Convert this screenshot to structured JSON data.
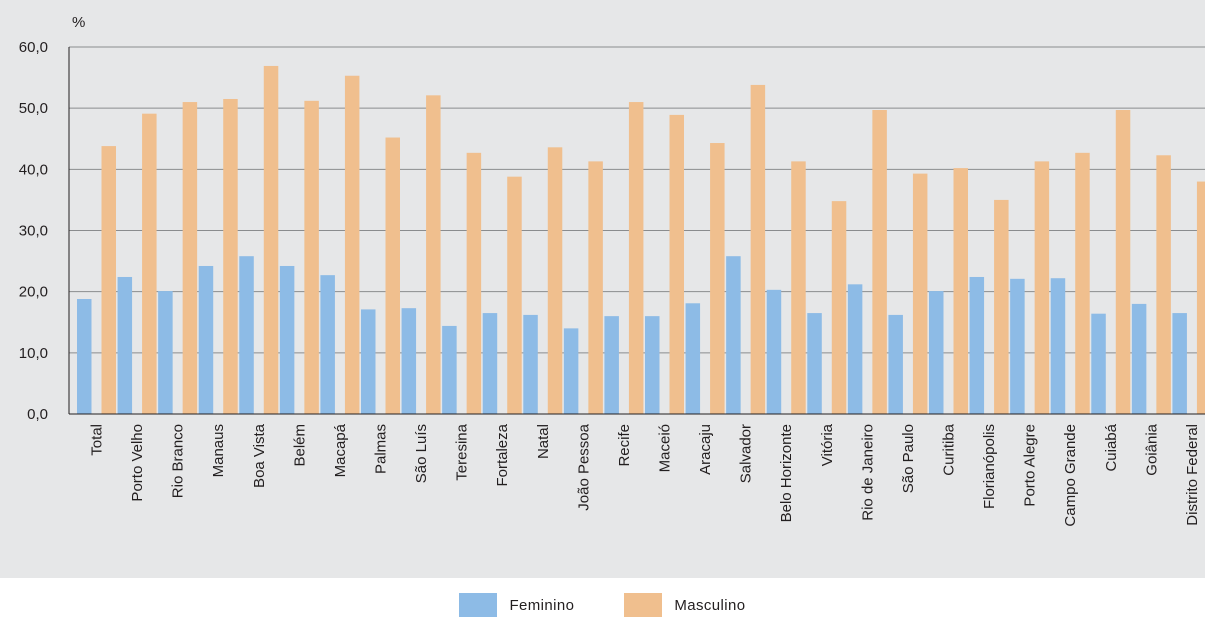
{
  "chart_data": {
    "type": "bar",
    "ylabel": "%",
    "ylim": [
      0,
      60
    ],
    "yticks": [
      "0,0",
      "10,0",
      "20,0",
      "30,0",
      "40,0",
      "50,0",
      "60,0"
    ],
    "grid": true,
    "legend_position": "bottom",
    "categories": [
      "Total",
      "Porto Velho",
      "Rio Branco",
      "Manaus",
      "Boa Vista",
      "Belém",
      "Macapá",
      "Palmas",
      "São Luís",
      "Teresina",
      "Fortaleza",
      "Natal",
      "João Pessoa",
      "Recife",
      "Maceió",
      "Aracaju",
      "Salvador",
      "Belo Horizonte",
      "Vitória",
      "Rio de Janeiro",
      "São Paulo",
      "Curitiba",
      "Florianópolis",
      "Porto Alegre",
      "Campo Grande",
      "Cuiabá",
      "Goiânia",
      "Distrito Federal"
    ],
    "series": [
      {
        "name": "Feminino",
        "color": "#8dbbe6",
        "values": [
          18.8,
          22.4,
          20.1,
          24.2,
          25.8,
          24.2,
          22.7,
          17.1,
          17.3,
          14.4,
          16.5,
          16.2,
          14.0,
          16.0,
          16.0,
          18.1,
          25.8,
          20.3,
          16.5,
          21.2,
          16.2,
          20.1,
          22.4,
          22.1,
          22.2,
          16.4,
          18.0,
          16.5
        ]
      },
      {
        "name": "Masculino",
        "color": "#f0bf8e",
        "values": [
          43.8,
          49.1,
          51.0,
          51.5,
          56.9,
          51.2,
          55.3,
          45.2,
          52.1,
          42.7,
          38.8,
          43.6,
          41.3,
          51.0,
          48.9,
          44.3,
          53.8,
          41.3,
          34.8,
          49.7,
          39.3,
          40.2,
          35.0,
          41.3,
          42.7,
          49.7,
          42.3,
          38.0
        ]
      }
    ]
  }
}
